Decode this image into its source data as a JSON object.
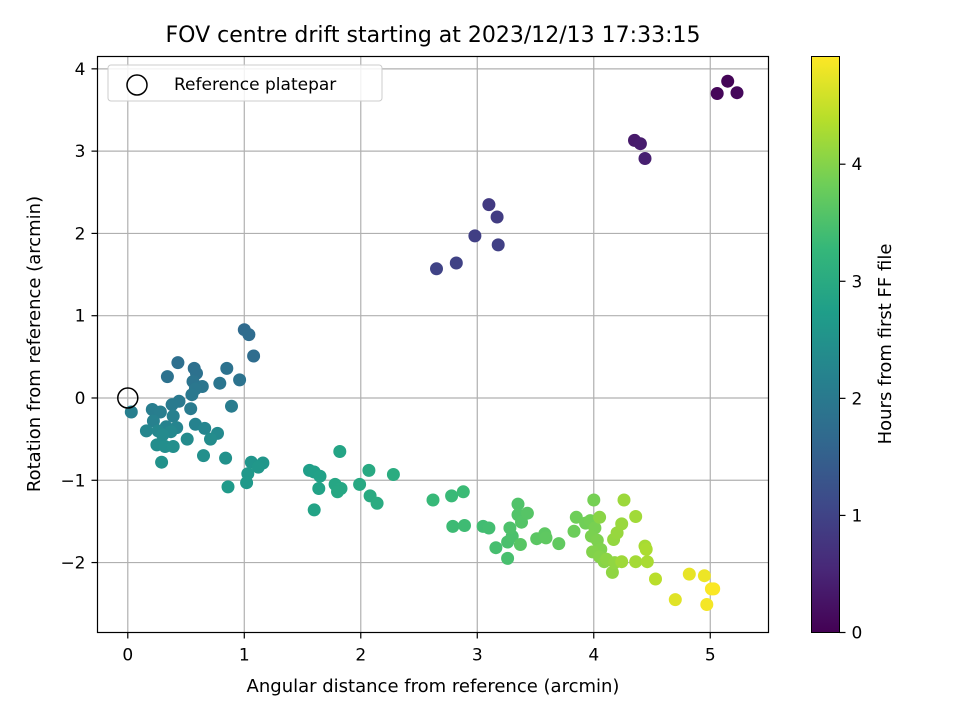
{
  "chart_data": {
    "type": "scatter",
    "title": "FOV centre drift starting at 2023/12/13 17:33:15",
    "xlabel": "Angular distance from reference (arcmin)",
    "ylabel": "Rotation from reference (arcmin)",
    "xlim": [
      -0.26,
      5.5
    ],
    "ylim": [
      -2.85,
      4.15
    ],
    "xticks": [
      0,
      1,
      2,
      3,
      4,
      5
    ],
    "yticks": [
      -2,
      -1,
      0,
      1,
      2,
      3,
      4
    ],
    "grid": true,
    "legend": {
      "position": "top-left",
      "entries": [
        "Reference platepar"
      ]
    },
    "reference_point": {
      "x": 0,
      "y": 0
    },
    "colorbar": {
      "label": "Hours from first FF file",
      "colormap": "viridis",
      "range": [
        0,
        4.92
      ],
      "ticks": [
        0,
        1,
        2,
        3,
        4
      ]
    },
    "colormap_stops": [
      "#440154",
      "#482878",
      "#3e4989",
      "#31688e",
      "#26828e",
      "#1f9e89",
      "#35b779",
      "#6ece58",
      "#b5de2b",
      "#fde725"
    ],
    "points": [
      {
        "x": 5.15,
        "y": 3.85,
        "c": 0.05
      },
      {
        "x": 5.06,
        "y": 3.7,
        "c": 0.08
      },
      {
        "x": 5.23,
        "y": 3.71,
        "c": 0.1
      },
      {
        "x": 4.35,
        "y": 3.13,
        "c": 0.35
      },
      {
        "x": 4.4,
        "y": 3.09,
        "c": 0.38
      },
      {
        "x": 4.44,
        "y": 2.91,
        "c": 0.42
      },
      {
        "x": 3.1,
        "y": 2.35,
        "c": 0.85
      },
      {
        "x": 3.17,
        "y": 2.2,
        "c": 0.88
      },
      {
        "x": 2.98,
        "y": 1.97,
        "c": 0.92
      },
      {
        "x": 3.18,
        "y": 1.86,
        "c": 0.95
      },
      {
        "x": 2.82,
        "y": 1.64,
        "c": 0.98
      },
      {
        "x": 2.65,
        "y": 1.57,
        "c": 1.0
      },
      {
        "x": 1.0,
        "y": 0.83,
        "c": 1.7
      },
      {
        "x": 1.04,
        "y": 0.77,
        "c": 1.72
      },
      {
        "x": 1.08,
        "y": 0.51,
        "c": 1.75
      },
      {
        "x": 0.43,
        "y": 0.43,
        "c": 1.78
      },
      {
        "x": 0.57,
        "y": 0.36,
        "c": 1.8
      },
      {
        "x": 0.59,
        "y": 0.3,
        "c": 1.82
      },
      {
        "x": 0.85,
        "y": 0.36,
        "c": 1.84
      },
      {
        "x": 0.34,
        "y": 0.26,
        "c": 1.86
      },
      {
        "x": 0.96,
        "y": 0.22,
        "c": 1.88
      },
      {
        "x": 0.56,
        "y": 0.2,
        "c": 1.9
      },
      {
        "x": 0.79,
        "y": 0.18,
        "c": 1.92
      },
      {
        "x": 0.64,
        "y": 0.14,
        "c": 1.94
      },
      {
        "x": 0.58,
        "y": 0.11,
        "c": 1.96
      },
      {
        "x": 0.55,
        "y": 0.04,
        "c": 1.98
      },
      {
        "x": 0.44,
        "y": -0.04,
        "c": 2.0
      },
      {
        "x": 0.38,
        "y": -0.08,
        "c": 2.02
      },
      {
        "x": 0.54,
        "y": -0.13,
        "c": 2.04
      },
      {
        "x": 0.89,
        "y": -0.1,
        "c": 2.06
      },
      {
        "x": 0.21,
        "y": -0.14,
        "c": 2.08
      },
      {
        "x": 0.28,
        "y": -0.17,
        "c": 2.1
      },
      {
        "x": 0.03,
        "y": -0.17,
        "c": 2.12
      },
      {
        "x": 0.39,
        "y": -0.22,
        "c": 2.14
      },
      {
        "x": 0.22,
        "y": -0.28,
        "c": 2.16
      },
      {
        "x": 0.58,
        "y": -0.32,
        "c": 2.18
      },
      {
        "x": 0.33,
        "y": -0.35,
        "c": 2.2
      },
      {
        "x": 0.42,
        "y": -0.36,
        "c": 2.22
      },
      {
        "x": 0.66,
        "y": -0.37,
        "c": 2.24
      },
      {
        "x": 0.16,
        "y": -0.4,
        "c": 2.26
      },
      {
        "x": 0.26,
        "y": -0.4,
        "c": 2.28
      },
      {
        "x": 0.37,
        "y": -0.41,
        "c": 2.3
      },
      {
        "x": 0.77,
        "y": -0.43,
        "c": 2.32
      },
      {
        "x": 0.3,
        "y": -0.45,
        "c": 2.34
      },
      {
        "x": 0.51,
        "y": -0.5,
        "c": 2.36
      },
      {
        "x": 0.71,
        "y": -0.5,
        "c": 2.38
      },
      {
        "x": 0.25,
        "y": -0.57,
        "c": 2.4
      },
      {
        "x": 0.32,
        "y": -0.59,
        "c": 2.42
      },
      {
        "x": 0.39,
        "y": -0.59,
        "c": 2.44
      },
      {
        "x": 0.65,
        "y": -0.7,
        "c": 2.46
      },
      {
        "x": 0.84,
        "y": -0.73,
        "c": 2.48
      },
      {
        "x": 0.29,
        "y": -0.78,
        "c": 2.5
      },
      {
        "x": 1.06,
        "y": -0.78,
        "c": 2.55
      },
      {
        "x": 1.16,
        "y": -0.79,
        "c": 2.58
      },
      {
        "x": 1.12,
        "y": -0.84,
        "c": 2.6
      },
      {
        "x": 1.03,
        "y": -0.92,
        "c": 2.62
      },
      {
        "x": 1.02,
        "y": -1.03,
        "c": 2.64
      },
      {
        "x": 0.86,
        "y": -1.08,
        "c": 2.66
      },
      {
        "x": 1.56,
        "y": -0.88,
        "c": 2.75
      },
      {
        "x": 1.6,
        "y": -0.9,
        "c": 2.78
      },
      {
        "x": 1.65,
        "y": -0.95,
        "c": 2.8
      },
      {
        "x": 1.64,
        "y": -1.1,
        "c": 2.82
      },
      {
        "x": 1.6,
        "y": -1.36,
        "c": 2.84
      },
      {
        "x": 1.82,
        "y": -0.65,
        "c": 2.86
      },
      {
        "x": 1.78,
        "y": -1.05,
        "c": 2.9
      },
      {
        "x": 1.83,
        "y": -1.1,
        "c": 2.92
      },
      {
        "x": 1.8,
        "y": -1.14,
        "c": 2.94
      },
      {
        "x": 1.99,
        "y": -1.05,
        "c": 2.96
      },
      {
        "x": 2.07,
        "y": -0.88,
        "c": 2.98
      },
      {
        "x": 2.08,
        "y": -1.19,
        "c": 3.0
      },
      {
        "x": 2.14,
        "y": -1.28,
        "c": 3.02
      },
      {
        "x": 2.28,
        "y": -0.93,
        "c": 3.04
      },
      {
        "x": 2.62,
        "y": -1.24,
        "c": 3.3
      },
      {
        "x": 2.78,
        "y": -1.19,
        "c": 3.32
      },
      {
        "x": 2.88,
        "y": -1.14,
        "c": 3.34
      },
      {
        "x": 2.79,
        "y": -1.56,
        "c": 3.36
      },
      {
        "x": 2.89,
        "y": -1.55,
        "c": 3.38
      },
      {
        "x": 3.05,
        "y": -1.56,
        "c": 3.4
      },
      {
        "x": 3.1,
        "y": -1.58,
        "c": 3.42
      },
      {
        "x": 3.16,
        "y": -1.82,
        "c": 3.44
      },
      {
        "x": 3.26,
        "y": -1.95,
        "c": 3.46
      },
      {
        "x": 3.26,
        "y": -1.75,
        "c": 3.48
      },
      {
        "x": 3.3,
        "y": -1.68,
        "c": 3.5
      },
      {
        "x": 3.28,
        "y": -1.58,
        "c": 3.52
      },
      {
        "x": 3.35,
        "y": -1.29,
        "c": 3.54
      },
      {
        "x": 3.35,
        "y": -1.42,
        "c": 3.56
      },
      {
        "x": 3.38,
        "y": -1.51,
        "c": 3.58
      },
      {
        "x": 3.43,
        "y": -1.4,
        "c": 3.6
      },
      {
        "x": 3.37,
        "y": -1.78,
        "c": 3.62
      },
      {
        "x": 3.51,
        "y": -1.71,
        "c": 3.64
      },
      {
        "x": 3.58,
        "y": -1.65,
        "c": 3.66
      },
      {
        "x": 3.59,
        "y": -1.7,
        "c": 3.68
      },
      {
        "x": 3.7,
        "y": -1.77,
        "c": 3.7
      },
      {
        "x": 3.83,
        "y": -1.62,
        "c": 3.8
      },
      {
        "x": 3.85,
        "y": -1.45,
        "c": 3.82
      },
      {
        "x": 3.93,
        "y": -1.52,
        "c": 3.84
      },
      {
        "x": 3.97,
        "y": -1.49,
        "c": 3.86
      },
      {
        "x": 4.0,
        "y": -1.24,
        "c": 3.88
      },
      {
        "x": 4.01,
        "y": -1.58,
        "c": 3.9
      },
      {
        "x": 3.98,
        "y": -1.68,
        "c": 3.92
      },
      {
        "x": 4.03,
        "y": -1.73,
        "c": 3.94
      },
      {
        "x": 4.06,
        "y": -1.84,
        "c": 3.96
      },
      {
        "x": 3.99,
        "y": -1.87,
        "c": 3.98
      },
      {
        "x": 4.05,
        "y": -1.93,
        "c": 4.0
      },
      {
        "x": 4.09,
        "y": -1.99,
        "c": 4.02
      },
      {
        "x": 4.05,
        "y": -1.45,
        "c": 4.04
      },
      {
        "x": 4.11,
        "y": -1.96,
        "c": 4.06
      },
      {
        "x": 4.16,
        "y": -2.12,
        "c": 4.08
      },
      {
        "x": 4.18,
        "y": -2.0,
        "c": 4.1
      },
      {
        "x": 4.17,
        "y": -1.72,
        "c": 4.12
      },
      {
        "x": 4.2,
        "y": -1.64,
        "c": 4.14
      },
      {
        "x": 4.24,
        "y": -1.53,
        "c": 4.16
      },
      {
        "x": 4.26,
        "y": -1.24,
        "c": 4.18
      },
      {
        "x": 4.24,
        "y": -1.99,
        "c": 4.2
      },
      {
        "x": 4.36,
        "y": -1.44,
        "c": 4.22
      },
      {
        "x": 4.36,
        "y": -1.99,
        "c": 4.24
      },
      {
        "x": 4.44,
        "y": -1.8,
        "c": 4.26
      },
      {
        "x": 4.46,
        "y": -1.99,
        "c": 4.28
      },
      {
        "x": 4.45,
        "y": -1.84,
        "c": 4.3
      },
      {
        "x": 4.53,
        "y": -2.2,
        "c": 4.4
      },
      {
        "x": 4.7,
        "y": -2.45,
        "c": 4.7
      },
      {
        "x": 4.82,
        "y": -2.14,
        "c": 4.75
      },
      {
        "x": 4.95,
        "y": -2.16,
        "c": 4.8
      },
      {
        "x": 4.97,
        "y": -2.51,
        "c": 4.85
      },
      {
        "x": 5.01,
        "y": -2.32,
        "c": 4.88
      },
      {
        "x": 5.03,
        "y": -2.32,
        "c": 4.9
      }
    ]
  }
}
